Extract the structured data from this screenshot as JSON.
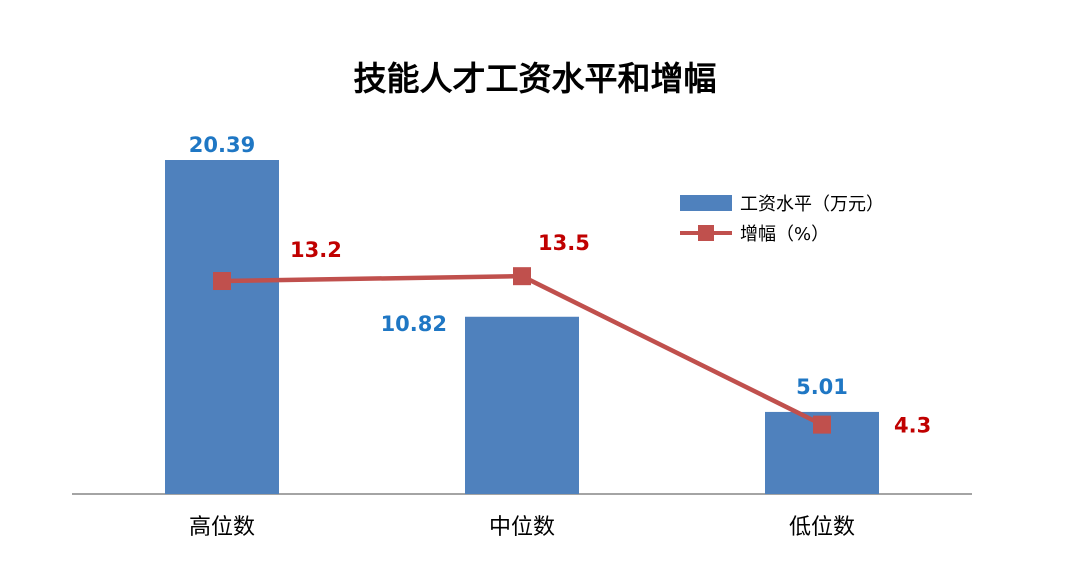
{
  "chart_data": {
    "type": "bar",
    "title": "技能人才工资水平和增幅",
    "categories": [
      "高位数",
      "中位数",
      "低位数"
    ],
    "series": [
      {
        "name": "工资水平（万元）",
        "kind": "bar",
        "axis": "left",
        "color": "#4F81BD",
        "label_color": "#1F77C4",
        "values": [
          20.39,
          10.82,
          5.01
        ],
        "value_labels": [
          "20.39",
          "10.82",
          "5.01"
        ]
      },
      {
        "name": "增幅（%）",
        "kind": "line",
        "axis": "right",
        "color": "#C0504D",
        "label_color": "#C00000",
        "marker": "square",
        "values": [
          13.2,
          13.5,
          4.3
        ],
        "value_labels": [
          "13.2",
          "13.5",
          "4.3"
        ]
      }
    ],
    "ylim_left": [
      0,
      20.39
    ],
    "ylim_right": [
      0,
      20.7
    ],
    "grid": false,
    "legend_position": "right"
  }
}
